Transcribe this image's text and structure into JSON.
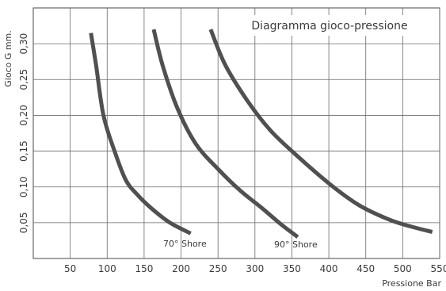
{
  "chart_data": {
    "type": "line",
    "title": "Diagramma gioco-pressione",
    "xlabel": "Pressione Bar",
    "ylabel": "Gioco G mm.",
    "xlim": [
      0,
      550
    ],
    "ylim": [
      0,
      0.35
    ],
    "grid": true,
    "x_ticks": [
      "50",
      "100",
      "150",
      "200",
      "250",
      "300",
      "350",
      "400",
      "450",
      "500",
      "550"
    ],
    "y_ticks": [
      "0,05",
      "0,10",
      "0,15",
      "0,20",
      "0,25",
      "0,30"
    ],
    "series": [
      {
        "name": "70° Shore",
        "color": "#505050",
        "points": [
          [
            78,
            0.315
          ],
          [
            85,
            0.27
          ],
          [
            95,
            0.2
          ],
          [
            110,
            0.15
          ],
          [
            125,
            0.11
          ],
          [
            140,
            0.09
          ],
          [
            160,
            0.07
          ],
          [
            185,
            0.05
          ],
          [
            213,
            0.035
          ]
        ]
      },
      {
        "name": "90° Shore",
        "color": "#505050",
        "points": [
          [
            163,
            0.32
          ],
          [
            175,
            0.27
          ],
          [
            195,
            0.21
          ],
          [
            220,
            0.16
          ],
          [
            250,
            0.125
          ],
          [
            280,
            0.095
          ],
          [
            310,
            0.07
          ],
          [
            335,
            0.048
          ],
          [
            358,
            0.03
          ]
        ]
      },
      {
        "name": "",
        "color": "#505050",
        "points": [
          [
            240,
            0.32
          ],
          [
            260,
            0.27
          ],
          [
            290,
            0.22
          ],
          [
            320,
            0.18
          ],
          [
            350,
            0.15
          ],
          [
            400,
            0.105
          ],
          [
            440,
            0.075
          ],
          [
            480,
            0.055
          ],
          [
            510,
            0.045
          ],
          [
            540,
            0.037
          ]
        ]
      }
    ]
  }
}
